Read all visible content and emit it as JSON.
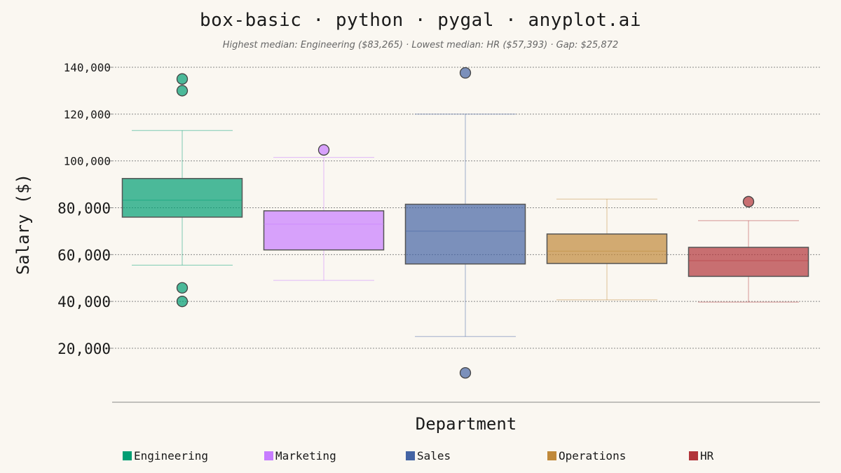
{
  "chart_data": {
    "type": "box",
    "title": "box-basic · python · pygal · anyplot.ai",
    "subtitle": "Highest median: Engineering ($83,265) · Lowest median: HR ($57,393) · Gap: $25,872",
    "xlabel": "Department",
    "ylabel": "Salary ($)",
    "ylim": [
      0,
      145000
    ],
    "yticks": [
      20000,
      40000,
      60000,
      80000,
      100000,
      120000,
      140000
    ],
    "ytick_labels": [
      "20,000",
      "40,000",
      "60,000",
      "80,000",
      "100,000",
      "120,000",
      "140,000"
    ],
    "grid": true,
    "legend_position": "bottom",
    "categories": [
      "Engineering",
      "Marketing",
      "Sales",
      "Operations",
      "HR"
    ],
    "series": [
      {
        "name": "Engineering",
        "color": "#009E73",
        "whisker_low": 55500,
        "q1": 76000,
        "median": 83265,
        "q3": 92500,
        "whisker_high": 113000,
        "outliers": [
          135000,
          130000,
          45800,
          40000
        ]
      },
      {
        "name": "Marketing",
        "color": "#C77CFF",
        "whisker_low": 49000,
        "q1": 62000,
        "median": 73000,
        "q3": 78700,
        "whisker_high": 101500,
        "outliers": [
          104700
        ]
      },
      {
        "name": "Sales",
        "color": "#4464A4",
        "whisker_low": 25000,
        "q1": 56000,
        "median": 70000,
        "q3": 81500,
        "whisker_high": 120000,
        "outliers": [
          137600,
          9500
        ]
      },
      {
        "name": "Operations",
        "color": "#C0893A",
        "whisker_low": 40700,
        "q1": 56200,
        "median": 61500,
        "q3": 68800,
        "whisker_high": 83700,
        "outliers": []
      },
      {
        "name": "HR",
        "color": "#B2353A",
        "whisker_low": 39700,
        "q1": 50700,
        "median": 57393,
        "q3": 63100,
        "whisker_high": 74500,
        "outliers": [
          82600
        ]
      }
    ]
  }
}
